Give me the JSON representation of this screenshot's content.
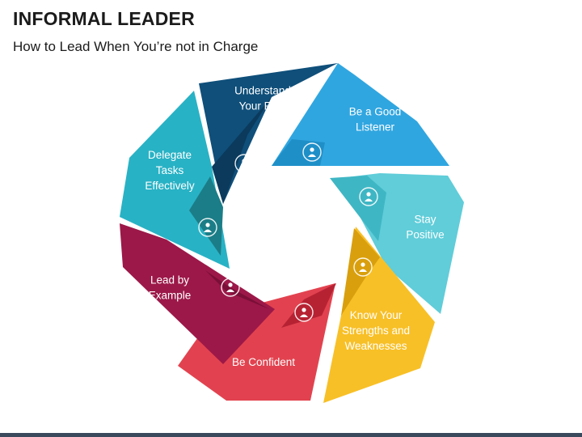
{
  "header": {
    "title": "INFORMAL LEADER",
    "subtitle": "How to Lead When You’re not in Charge"
  },
  "segments": [
    {
      "id": "understand-your-role",
      "lines": [
        "Understand",
        "Your Role"
      ],
      "color": "#0f4f7a",
      "dark": "#0b3a5c",
      "icon": "person-gear-icon"
    },
    {
      "id": "be-a-good-listener",
      "lines": [
        "Be a Good",
        "Listener"
      ],
      "color": "#30a6e0",
      "dark": "#1f8fc8",
      "icon": "ear-listen-icon"
    },
    {
      "id": "stay-positive",
      "lines": [
        "Stay",
        "Positive"
      ],
      "color": "#60cdd9",
      "dark": "#3fb6c4",
      "icon": "person-raising-arms-icon"
    },
    {
      "id": "know-strengths-weaknesses",
      "lines": [
        "Know Your",
        "Strengths and",
        "Weaknesses"
      ],
      "color": "#f8c027",
      "dark": "#d99f0d",
      "icon": "balance-scale-icon"
    },
    {
      "id": "be-confident",
      "lines": [
        "Be Confident"
      ],
      "color": "#e2424f",
      "dark": "#b72233",
      "icon": "confident-person-icon"
    },
    {
      "id": "lead-by-example",
      "lines": [
        "Lead by",
        "Example"
      ],
      "color": "#9c1848",
      "dark": "#7a0f37",
      "icon": "group-people-icon"
    },
    {
      "id": "delegate-tasks",
      "lines": [
        "Delegate",
        "Tasks",
        "Effectively"
      ],
      "color": "#28b2c5",
      "dark": "#1b7d87",
      "icon": "team-hierarchy-icon"
    }
  ]
}
